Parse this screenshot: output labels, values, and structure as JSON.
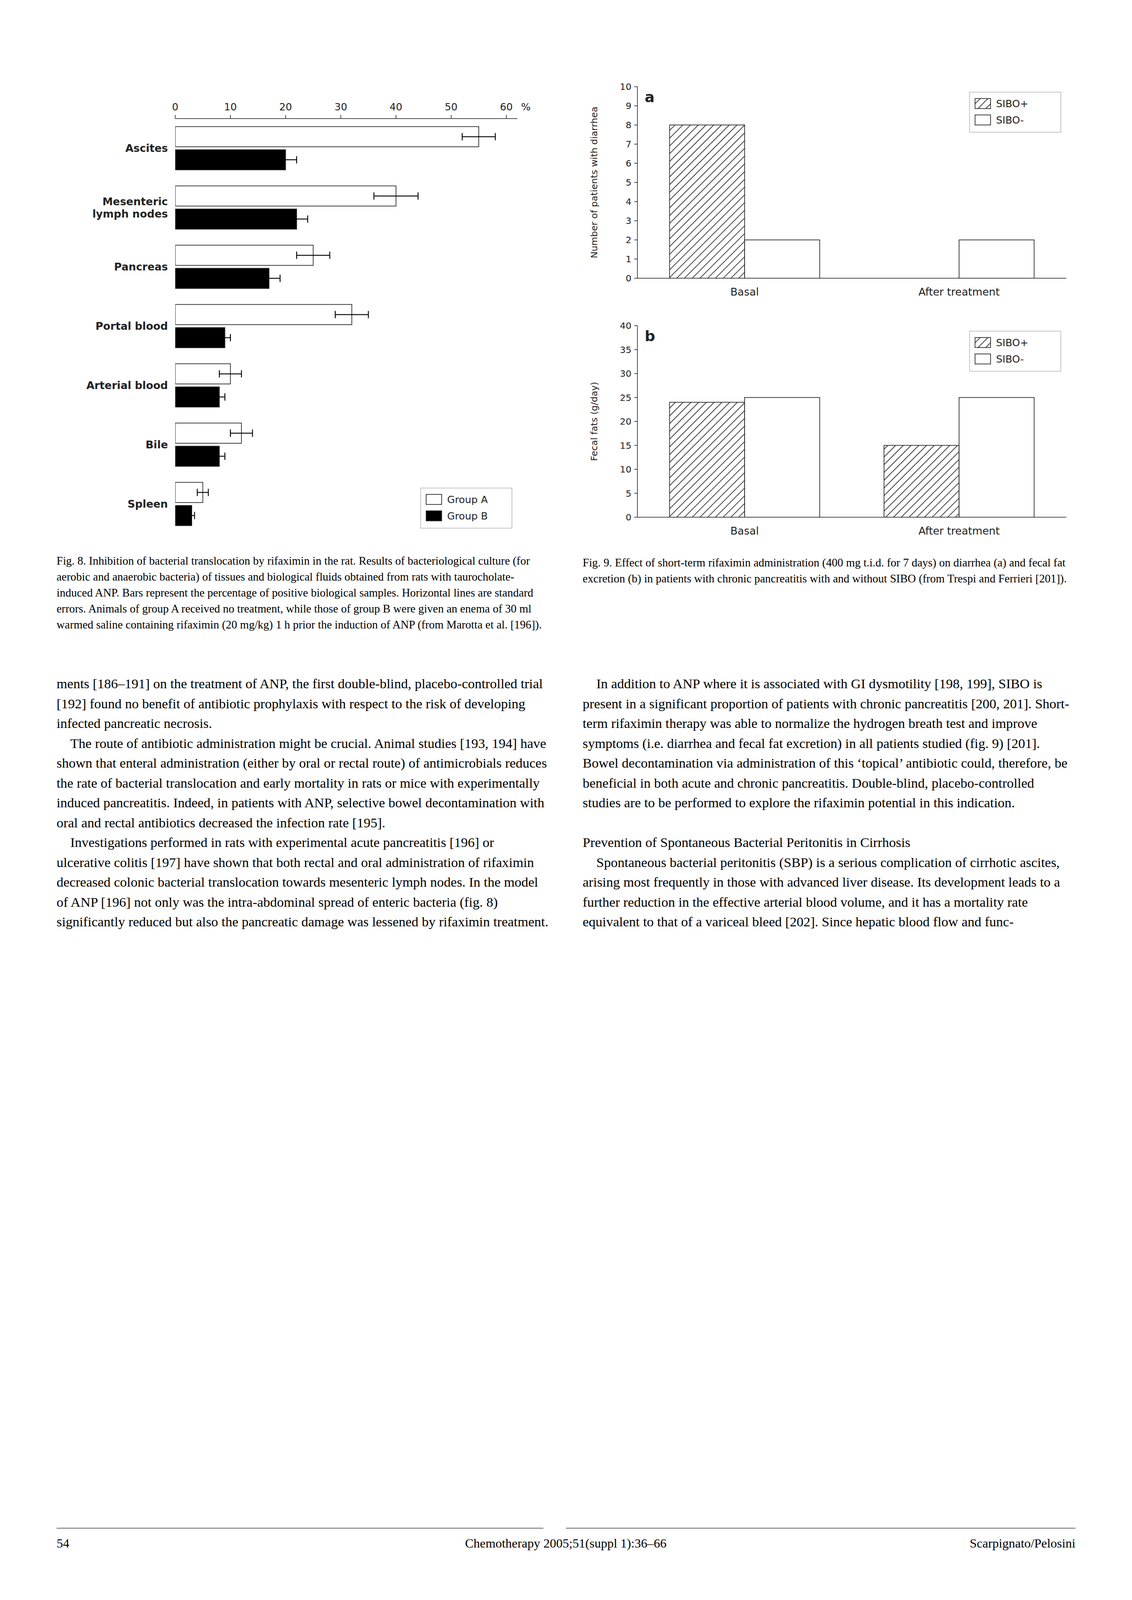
{
  "chart_data": [
    {
      "type": "bar",
      "orientation": "horizontal",
      "categories": [
        "Ascites",
        "Mesenteric\nlymph nodes",
        "Pancreas",
        "Portal blood",
        "Arterial blood",
        "Bile",
        "Spleen"
      ],
      "series": [
        {
          "name": "Group A",
          "color": "#ffffff",
          "values": [
            55,
            40,
            25,
            32,
            10,
            12,
            5
          ],
          "errors": [
            3,
            4,
            3,
            3,
            2,
            2,
            1
          ]
        },
        {
          "name": "Group B",
          "color": "#000000",
          "values": [
            20,
            22,
            17,
            9,
            8,
            8,
            3
          ],
          "errors": [
            2,
            2,
            2,
            1,
            1,
            1,
            0.5
          ]
        }
      ],
      "xlabel": "%",
      "xlim": [
        0,
        62
      ],
      "xticks": [
        0,
        10,
        20,
        30,
        40,
        50,
        60
      ],
      "legend": "lower right",
      "grid": false,
      "annotations": [
        "Fig. 8. Inhibition of bacterial translocation by rifaximin in the rat. Results of bacteriological culture (for aerobic and anaerobic bacteria) of tissues and biological fluids obtained from rats with taurocholate-induced ANP. Bars represent the percentage of positive biological samples. Horizontal lines are standard errors. Animals of group A received no treatment, while those of group B were given an enema of 30 ml warmed saline containing rifaximin (20 mg/kg) 1 h prior the induction of ANP (from Marotta et al. [196]).",
        "ments [186–191] on the treatment of ANP, the first double-blind, placebo-controlled trial [192] found no benefit of antibiotic prophylaxis with respect to the risk of developing infected pancreatic necrosis.\n    The route of antibiotic administration might be crucial. Animal studies [193, 194] have shown that enteral administration (either by oral or rectal route) of antimicrobials reduces the rate of bacterial translocation and early mortality in rats or mice with experimentally induced pancreatitis. Indeed, in patients with ANP, selective bowel decontamination with oral and rectal antibiotics decreased the infection rate [195].\n    Investigations performed in rats with experimental acute pancreatitis [196] or ulcerative colitis [197] have shown that both rectal and oral administration of rifaximin decreased colonic bacterial translocation towards mesenteric lymph nodes. In the model of ANP [196] not only was the intra-abdominal spread of enteric bacteria (fig. 8) significantly reduced but also the pancreatic damage was lessened by rifaximin treatment."
      ]
    },
    {
      "type": "bar",
      "title": "a",
      "categories": [
        "Basal",
        "After treatment"
      ],
      "series": [
        {
          "name": "SIBO+",
          "color": "#ffffff",
          "values": [
            8,
            0
          ]
        },
        {
          "name": "SIBO-",
          "color": "#ffffff",
          "values": [
            2,
            2
          ]
        }
      ],
      "ylabel": "Number of patients with diarrhea",
      "ylim": [
        0,
        10
      ],
      "yticks": [
        0,
        1,
        2,
        3,
        4,
        5,
        6,
        7,
        8,
        9,
        10
      ],
      "legend": "upper right",
      "grid": false,
      "annotations": [
        "Fig. 9. Effect of short-term rifaximin administration (400 mg t.i.d. for 7 days) on diarrhea (a) and fecal fat excretion (b) in patients with chronic pancreatitis with and without SIBO (from Trespi and Ferrieri [201]).",
        "    In addition to ANP where it is associated with GI dysmotility [198, 199], SIBO is present in a significant proportion of patients with chronic pancreatitis [200, 201]. Short-term rifaximin therapy was able to normalize the hydrogen breath test and improve symptoms (i.e. diarrhea and fecal fat excretion) in all patients studied (fig. 9) [201]. Bowel decontamination via administration of this ‘topical’ antibiotic could, therefore, be beneficial in both acute and chronic pancreatitis. Double-blind, placebo-controlled studies are to be performed to explore the rifaximin potential in this indication.\n\nPrevention of Spontaneous Bacterial Peritonitis in Cirrhosis\n    Spontaneous bacterial peritonitis (SBP) is a serious complication of cirrhotic ascites, arising most frequently in those with advanced liver disease. Its development leads to a further reduction in the effective arterial blood volume, and it has a mortality rate equivalent to that of a variceal bleed [202]. Since hepatic blood flow and func-"
      ]
    },
    {
      "type": "bar",
      "title": "b",
      "categories": [
        "Basal",
        "After treatment"
      ],
      "series": [
        {
          "name": "SIBO+",
          "color": "#ffffff",
          "values": [
            24,
            15
          ]
        },
        {
          "name": "SIBO-",
          "color": "#ffffff",
          "values": [
            25,
            25
          ]
        }
      ],
      "ylabel": "Fecal fats (g/day)",
      "ylim": [
        0,
        40
      ],
      "yticks": [
        0,
        5,
        10,
        15,
        20,
        25,
        30,
        35,
        40
      ],
      "legend": "upper right",
      "grid": false,
      "annotations": [
        "54",
        "Chemotherapy 2005;51(suppl 1):36–66",
        "Scarpignato/Pelosini"
      ]
    }
  ]
}
